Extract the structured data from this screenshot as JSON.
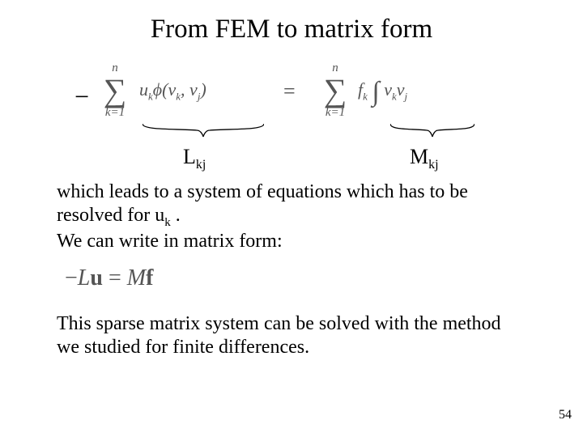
{
  "title": "From FEM to matrix form",
  "eq1": {
    "minus": "−",
    "sum_top": "n",
    "sum_sigma": "∑",
    "sum_bottom": "k=1",
    "lhs_html": "u<sub>k</sub>&#981;(v<sub>k</sub>, v<sub>j</sub>)",
    "equals": "=",
    "rhs_f": "f<sub>k</sub>",
    "rhs_int_html": "v<sub>k</sub>v<sub>j</sub>"
  },
  "brace_labels": {
    "L": "L",
    "L_sub": "kj",
    "M": "M",
    "M_sub": "kj"
  },
  "para1_html": "which leads to a system of equations which has to be resolved for u<sub>k</sub> .<br>We can write in matrix form:",
  "eq2": "−Lu = Mf",
  "para2": "This sparse matrix system can be solved with the method we studied for finite differences.",
  "page": "54"
}
